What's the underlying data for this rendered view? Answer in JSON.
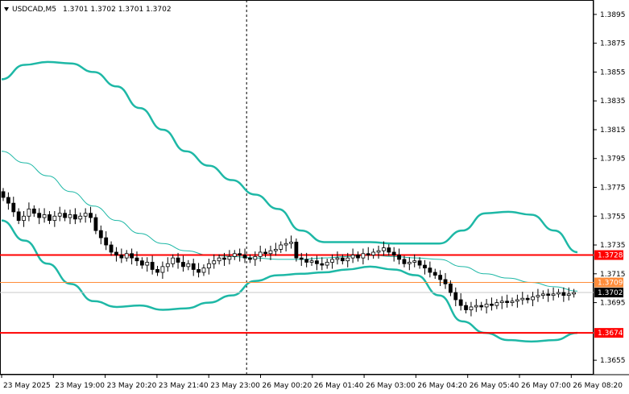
{
  "header": {
    "symbol_label": "USDCAD,M5",
    "ohlc": "1.3701 1.3702 1.3701 1.3702",
    "menu_arrow": "triangle-down-icon"
  },
  "colors": {
    "background": "#ffffff",
    "bands": "#1eb8a6",
    "level_red": "#ff0000",
    "level_orange": "#ff8c3a",
    "current_price_badge": "#000000",
    "candle_bull": "#ffffff",
    "candle_bear": "#000000",
    "grid": "#d0d0d0"
  },
  "chart_data": {
    "type": "candlestick",
    "symbol": "USDCAD",
    "timeframe": "M5",
    "y_range": [
      1.3645,
      1.3905
    ],
    "y_ticks": [
      "1.3895",
      "1.3875",
      "1.3855",
      "1.3835",
      "1.3815",
      "1.3795",
      "1.3775",
      "1.3755",
      "1.3735",
      "1.3715",
      "1.3695",
      "1.3655"
    ],
    "x_ticks": [
      "23 May 2025",
      "23 May 19:00",
      "23 May 20:20",
      "23 May 21:40",
      "23 May 23:00",
      "26 May 00:20",
      "26 May 01:40",
      "26 May 03:00",
      "26 May 04:20",
      "26 May 05:40",
      "26 May 07:00",
      "26 May 08:20"
    ],
    "horizontal_levels": [
      {
        "label": "1.3728",
        "value": 1.3728,
        "color": "#ff0000"
      },
      {
        "label": "1.3709",
        "value": 1.3709,
        "color": "#ff8c3a"
      },
      {
        "label": "1.3674",
        "value": 1.3674,
        "color": "#ff0000"
      }
    ],
    "current_price": {
      "label": "1.3702",
      "value": 1.3702
    },
    "period_separator": "23 May 23:00",
    "closes": [
      1.3768,
      1.3764,
      1.3758,
      1.3752,
      1.3755,
      1.376,
      1.3757,
      1.3754,
      1.3756,
      1.3752,
      1.3755,
      1.3757,
      1.3754,
      1.3756,
      1.3753,
      1.3755,
      1.3757,
      1.3754,
      1.3745,
      1.374,
      1.3735,
      1.373,
      1.3728,
      1.3726,
      1.3729,
      1.3726,
      1.3724,
      1.3721,
      1.3723,
      1.3718,
      1.3716,
      1.372,
      1.3722,
      1.3726,
      1.3723,
      1.372,
      1.3722,
      1.3718,
      1.3716,
      1.3719,
      1.3722,
      1.3724,
      1.3726,
      1.3725,
      1.3727,
      1.3729,
      1.3728,
      1.3726,
      1.3725,
      1.3727,
      1.373,
      1.3729,
      1.3731,
      1.3732,
      1.3735,
      1.3736,
      1.3737,
      1.3726,
      1.3725,
      1.3723,
      1.3724,
      1.3722,
      1.3721,
      1.3723,
      1.3725,
      1.3726,
      1.3724,
      1.3726,
      1.3728,
      1.3726,
      1.3729,
      1.3728,
      1.373,
      1.3731,
      1.3733,
      1.373,
      1.3728,
      1.3725,
      1.3722,
      1.3723,
      1.3724,
      1.3721,
      1.3719,
      1.3716,
      1.3714,
      1.3711,
      1.3708,
      1.3702,
      1.3697,
      1.3693,
      1.369,
      1.3692,
      1.3693,
      1.3692,
      1.3694,
      1.3693,
      1.3695,
      1.3696,
      1.3695,
      1.3696,
      1.3697,
      1.3698,
      1.3697,
      1.3699,
      1.37,
      1.3701,
      1.37,
      1.3701,
      1.3702,
      1.37,
      1.3701,
      1.3702
    ],
    "bollinger_upper": [
      1.385,
      1.386,
      1.3862,
      1.3861,
      1.3855,
      1.3845,
      1.383,
      1.3815,
      1.38,
      1.379,
      1.378,
      1.377,
      1.376,
      1.3745,
      1.3737,
      1.3737,
      1.3737,
      1.3736,
      1.3736,
      1.3736,
      1.3745,
      1.3757,
      1.3758,
      1.3756,
      1.3745,
      1.373
    ],
    "bollinger_middle": [
      1.38,
      1.3792,
      1.3783,
      1.3772,
      1.3762,
      1.3752,
      1.3743,
      1.3736,
      1.3731,
      1.3728,
      1.3727,
      1.3726,
      1.3725,
      1.3725,
      1.3726,
      1.3727,
      1.3728,
      1.3727,
      1.3726,
      1.3725,
      1.372,
      1.3715,
      1.3712,
      1.3709,
      1.3706,
      1.3703
    ],
    "bollinger_lower": [
      1.3752,
      1.3738,
      1.3722,
      1.3708,
      1.3696,
      1.3692,
      1.3693,
      1.369,
      1.3691,
      1.3695,
      1.37,
      1.371,
      1.3714,
      1.3715,
      1.3716,
      1.3718,
      1.372,
      1.3718,
      1.3714,
      1.37,
      1.3682,
      1.3674,
      1.3669,
      1.3668,
      1.3669,
      1.3674
    ]
  }
}
